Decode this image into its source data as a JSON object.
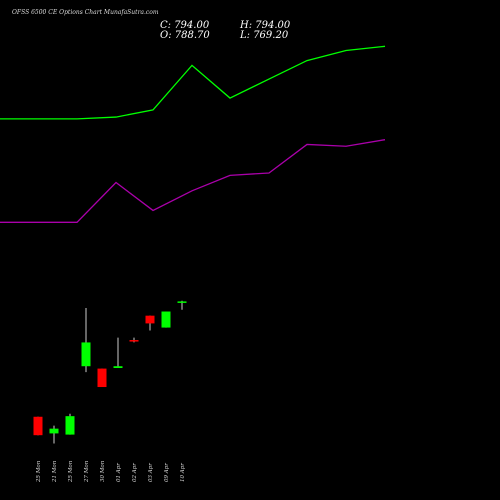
{
  "header": {
    "title": "OFSS 6500  CE Options  Chart MunafaSutra.com",
    "open_text": "O: 788.70",
    "close_text": "C: 794.00",
    "high_text": "H: 794.00",
    "low_text": "L: 769.20"
  },
  "colors": {
    "background": "#000000",
    "upper_band": "#00ff00",
    "lower_band": "#aa00aa",
    "bull_candle": "#00ff00",
    "bear_candle": "#ff0000",
    "wick": "#ffffff",
    "label": "#dddddd"
  },
  "chart_data": {
    "type": "candlestick",
    "title": "OFSS 6500  CE Options  Chart MunafaSutra.com",
    "xlabel": "",
    "ylabel": "",
    "grid": false,
    "categories": [
      "25 Mon",
      "21 Mon",
      "25 Mon",
      "27 Mon",
      "30 Mon",
      "01 Apr",
      "02 Apr",
      "03 Apr",
      "09 Apr",
      "10 Apr"
    ],
    "category_labels": [
      "25 Mon",
      "21 Mon",
      "25 Mon",
      "27 Mon",
      "30 Mon",
      "01 Apr",
      "02 Apr",
      "03 Apr",
      "09 Apr",
      "10 Apr"
    ],
    "ylim": [
      330,
      1070
    ],
    "candles": [
      {
        "open": 470,
        "high": 470,
        "low": 439,
        "close": 439
      },
      {
        "open": 442,
        "high": 455,
        "low": 425,
        "close": 450
      },
      {
        "open": 440,
        "high": 475,
        "low": 440,
        "close": 471
      },
      {
        "open": 555,
        "high": 653,
        "low": 545,
        "close": 595
      },
      {
        "open": 551,
        "high": 551,
        "low": 520,
        "close": 520
      },
      {
        "open": 552,
        "high": 603,
        "low": 552,
        "close": 555
      },
      {
        "open": 599,
        "high": 603,
        "low": 595,
        "close": 598
      },
      {
        "open": 640,
        "high": 640,
        "low": 615,
        "close": 627
      },
      {
        "open": 620,
        "high": 647,
        "low": 620,
        "close": 647
      },
      {
        "open": 662,
        "high": 665,
        "low": 650,
        "close": 664
      }
    ],
    "series": [
      {
        "values": [
          971,
          971,
          974,
          986,
          1061,
          1006,
          1038,
          1069,
          1086,
          1093
        ]
      },
      {
        "values": [
          797,
          797,
          864,
          817,
          850,
          876,
          880,
          928,
          925,
          936
        ]
      }
    ]
  }
}
